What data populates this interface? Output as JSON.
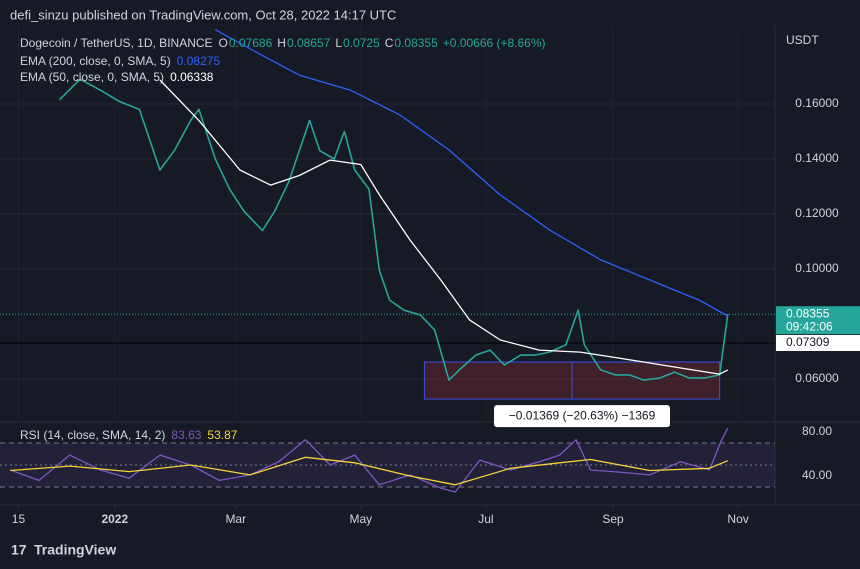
{
  "header": {
    "publisher": "defi_sinzu published on TradingView.com, Oct 28, 2022 14:17 UTC"
  },
  "footer": {
    "brand": "TradingView"
  },
  "chart_data": [
    {
      "type": "line",
      "title": "Dogecoin / TetherUS, 1D, BINANCE",
      "ohlc": [
        {
          "label": "O",
          "value": 0.07686
        },
        {
          "label": "H",
          "value": 0.08657
        },
        {
          "label": "L",
          "value": 0.0725
        },
        {
          "label": "C",
          "value": 0.08355
        }
      ],
      "change": "+0.00666 (+8.66%)",
      "currency": "USDT",
      "xlim": [
        -56,
        322
      ],
      "ylim": [
        0.0451,
        0.1887
      ],
      "yticks": [
        {
          "value": 0.06,
          "label": "0.06000"
        },
        {
          "value": 0.1,
          "label": "0.10000"
        },
        {
          "value": 0.12,
          "label": "0.12000"
        },
        {
          "value": 0.14,
          "label": "0.14000"
        },
        {
          "value": 0.16,
          "label": "0.16000"
        }
      ],
      "grid": true,
      "series": [
        {
          "color": "#26a69a",
          "x": [
            -27,
            -17,
            -7,
            2,
            12,
            22,
            29,
            37,
            41,
            49,
            56,
            63,
            72,
            78,
            85,
            90,
            95,
            100,
            107,
            112,
            117,
            124,
            129,
            134,
            141,
            149,
            156,
            163,
            168,
            176,
            183,
            190,
            198,
            205,
            212,
            220,
            226,
            229,
            237,
            244,
            251,
            258,
            266,
            273,
            280,
            288,
            295,
            299
          ],
          "values": [
            0.1615,
            0.169,
            0.165,
            0.161,
            0.158,
            0.136,
            0.143,
            0.154,
            0.158,
            0.14,
            0.129,
            0.121,
            0.114,
            0.121,
            0.132,
            0.143,
            0.154,
            0.143,
            0.14,
            0.15,
            0.136,
            0.129,
            0.0996,
            0.0887,
            0.085,
            0.0833,
            0.0778,
            0.0596,
            0.0633,
            0.0687,
            0.0705,
            0.0651,
            0.0687,
            0.0687,
            0.0698,
            0.0724,
            0.0851,
            0.0724,
            0.0633,
            0.0615,
            0.0615,
            0.0596,
            0.0604,
            0.0625,
            0.0604,
            0.0604,
            0.0615,
            0.0836
          ]
        },
        {
          "name": "EMA (200, close, 0, SMA, 5)",
          "last": 0.08275,
          "color": "#2962ff",
          "x": [
            49,
            71,
            90,
            115,
            139,
            163,
            188,
            212,
            237,
            261,
            285,
            299
          ],
          "values": [
            0.187,
            0.178,
            0.1705,
            0.165,
            0.156,
            0.1433,
            0.1269,
            0.1142,
            0.1033,
            0.096,
            0.0887,
            0.0829
          ]
        },
        {
          "name": "EMA (50, close, 0, SMA, 5)",
          "last": 0.06338,
          "color": "#ffffff",
          "x": [
            22,
            41,
            61,
            76,
            90,
            105,
            120,
            129,
            144,
            159,
            173,
            188,
            207,
            227,
            246,
            276,
            295,
            299
          ],
          "values": [
            0.1687,
            0.154,
            0.136,
            0.1305,
            0.134,
            0.1396,
            0.138,
            0.127,
            0.1105,
            0.096,
            0.0815,
            0.0742,
            0.0705,
            0.0698,
            0.0676,
            0.064,
            0.0618,
            0.0633
          ]
        }
      ],
      "price_labels": [
        {
          "value": 0.08355,
          "label": "0.08355",
          "time": "09:42:06",
          "color": "#26a69a"
        },
        {
          "value": 0.07309,
          "label": "0.07309",
          "color": "#ffffff"
        }
      ],
      "measure": {
        "label": "−0.01369 (−20.63%) −1369",
        "top": 0.0662,
        "bottom": 0.0527,
        "start": 151,
        "end": 295,
        "split": 223
      }
    },
    {
      "type": "line",
      "title": "RSI (14, close, SMA, 14, 2)",
      "xlim": [
        -56,
        322
      ],
      "ylim": [
        18.2,
        86.4
      ],
      "yticks": [
        {
          "value": 40,
          "label": "40.00"
        },
        {
          "value": 80,
          "label": "80.00"
        }
      ],
      "bands": [
        30,
        50,
        70
      ],
      "xticks": [
        {
          "value": -47,
          "label": "15"
        },
        {
          "value": 0,
          "label": "2022"
        },
        {
          "value": 59,
          "label": "Mar"
        },
        {
          "value": 120,
          "label": "May"
        },
        {
          "value": 181,
          "label": "Jul"
        },
        {
          "value": 243,
          "label": "Sep"
        },
        {
          "value": 304,
          "label": "Nov"
        }
      ],
      "series": [
        {
          "last": 83.63,
          "color": "#7e57c2",
          "x": [
            -51,
            -37,
            -22,
            -7,
            7,
            22,
            37,
            51,
            66,
            80,
            93,
            105,
            117,
            129,
            144,
            159,
            166,
            178,
            193,
            207,
            217,
            225,
            232,
            246,
            261,
            276,
            290,
            296,
            299
          ],
          "values": [
            45.5,
            36,
            59,
            45.5,
            38,
            59,
            50,
            36,
            41,
            53,
            73,
            50,
            59,
            32,
            41,
            29,
            25.5,
            54.5,
            45.5,
            53,
            59,
            73,
            45.5,
            43.6,
            41,
            53,
            45.5,
            73,
            83.6
          ]
        },
        {
          "last": 53.87,
          "color": "#f5d33a",
          "x": [
            -51,
            -22,
            7,
            37,
            66,
            93,
            117,
            144,
            166,
            193,
            217,
            232,
            261,
            290,
            299
          ],
          "values": [
            45,
            49,
            44,
            50,
            41,
            57,
            52,
            40,
            32,
            47,
            52,
            55,
            45,
            47,
            53.9
          ]
        }
      ]
    }
  ]
}
